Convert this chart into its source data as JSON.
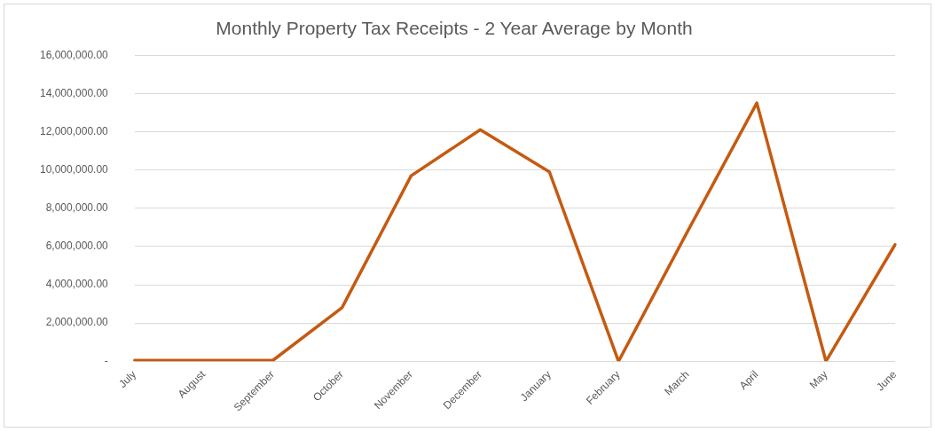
{
  "chart_data": {
    "type": "line",
    "title": "Monthly Property Tax Receipts - 2 Year Average by Month",
    "categories": [
      "July",
      "August",
      "September",
      "October",
      "November",
      "December",
      "January",
      "February",
      "March",
      "April",
      "May",
      "June"
    ],
    "series": [
      {
        "color": "#c55a11",
        "values": [
          50000,
          50000,
          50000,
          2800000,
          9700000,
          12100000,
          9900000,
          0,
          6800000,
          13500000,
          0,
          6100000
        ]
      }
    ],
    "ylim": [
      0,
      16000000
    ],
    "yticks": [
      {
        "value": 0,
        "label": "-"
      },
      {
        "value": 2000000,
        "label": "2,000,000.00"
      },
      {
        "value": 4000000,
        "label": "4,000,000.00"
      },
      {
        "value": 6000000,
        "label": "6,000,000.00"
      },
      {
        "value": 8000000,
        "label": "8,000,000.00"
      },
      {
        "value": 10000000,
        "label": "10,000,000.00"
      },
      {
        "value": 12000000,
        "label": "12,000,000.00"
      },
      {
        "value": 14000000,
        "label": "14,000,000.00"
      },
      {
        "value": 16000000,
        "label": "16,000,000.00"
      }
    ],
    "grid": "y",
    "legend": false,
    "marker": "none",
    "line_style": "solid"
  }
}
